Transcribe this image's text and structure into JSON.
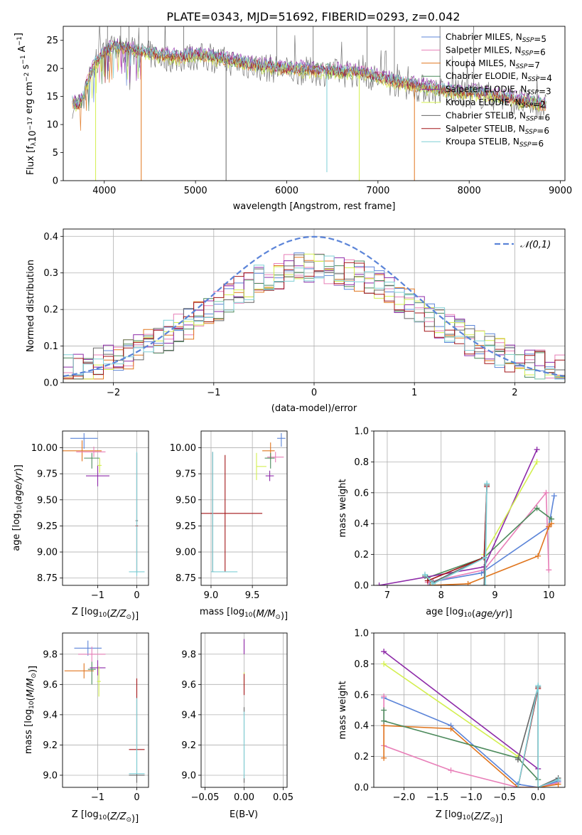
{
  "figure": {
    "title": "PLATE=0343, MJD=51692, FIBERID=0293, z=0.042"
  },
  "colors": {
    "Chabrier MILES": "#5b84d8",
    "Salpeter MILES": "#e87fb8",
    "Kroupa MILES": "#e0761f",
    "Chabrier ELODIE": "#4c8a5c",
    "Salpeter ELODIE": "#8d2aa8",
    "Kroupa ELODIE": "#d3ef4f",
    "Chabrier STELIB": "#666666",
    "Salpeter STELIB": "#a31518",
    "Kroupa STELIB": "#7ecfd6",
    "normal": "#5b84d8",
    "grid": "#b0b0b0"
  },
  "chart_data": [
    {
      "id": "spectrum",
      "type": "line",
      "title": "PLATE=0343, MJD=51692, FIBERID=0293, z=0.042",
      "xlabel": "wavelength [Angstrom, rest frame]",
      "ylabel": "Flux [f_λ 10^-17 erg cm^-2 s^-1 A^-1]",
      "xlim": [
        3550,
        9050
      ],
      "ylim": [
        0,
        27.5
      ],
      "xticks": [
        4000,
        5000,
        6000,
        7000,
        8000,
        9000
      ],
      "yticks": [
        0,
        5,
        10,
        15,
        20,
        25
      ],
      "x_range": [
        3650,
        8850
      ],
      "continuum": [
        [
          3650,
          14
        ],
        [
          3720,
          13.5
        ],
        [
          3760,
          14.5
        ],
        [
          3800,
          17
        ],
        [
          3900,
          21
        ],
        [
          3950,
          22
        ],
        [
          4000,
          23
        ],
        [
          4100,
          24
        ],
        [
          4200,
          23.8
        ],
        [
          4400,
          23
        ],
        [
          4600,
          22.5
        ],
        [
          4800,
          22
        ],
        [
          5000,
          22.5
        ],
        [
          5300,
          21.8
        ],
        [
          5600,
          20.8
        ],
        [
          6000,
          20
        ],
        [
          6300,
          19.8
        ],
        [
          6600,
          19.5
        ],
        [
          6800,
          19.5
        ],
        [
          7000,
          18.5
        ],
        [
          7400,
          17
        ],
        [
          7800,
          16
        ],
        [
          8200,
          15.5
        ],
        [
          8500,
          14.5
        ],
        [
          8850,
          13.5
        ]
      ],
      "legend": [
        {
          "label": "Chabrier MILES",
          "nssp": "5"
        },
        {
          "label": "Salpeter MILES",
          "nssp": "6"
        },
        {
          "label": "Kroupa MILES",
          "nssp": "7"
        },
        {
          "label": "Chabrier ELODIE",
          "nssp": "4"
        },
        {
          "label": "Salpeter ELODIE",
          "nssp": "3"
        },
        {
          "label": "Kroupa ELODIE",
          "nssp": "2"
        },
        {
          "label": "Chabrier STELIB",
          "nssp": "6"
        },
        {
          "label": "Salpeter STELIB",
          "nssp": "6"
        },
        {
          "label": "Kroupa STELIB",
          "nssp": "6"
        }
      ],
      "dips": [
        {
          "x": 3905,
          "y": 0,
          "series": "Kroupa ELODIE"
        },
        {
          "x": 4405,
          "y": 0,
          "series": "Kroupa MILES"
        },
        {
          "x": 5335,
          "y": 0,
          "series": "Chabrier STELIB"
        },
        {
          "x": 6440,
          "y": 1.5,
          "series": "Kroupa STELIB"
        },
        {
          "x": 6795,
          "y": 0,
          "series": "Kroupa ELODIE"
        },
        {
          "x": 7400,
          "y": 0,
          "series": "Kroupa MILES"
        }
      ]
    },
    {
      "id": "residuals",
      "type": "histogram",
      "xlabel": "(data-model)/error",
      "ylabel": "Normed distribution",
      "xlim": [
        -2.5,
        2.5
      ],
      "ylim": [
        0,
        0.42
      ],
      "xticks": [
        -2,
        -1,
        0,
        1,
        2
      ],
      "yticks": [
        0.0,
        0.1,
        0.2,
        0.3,
        0.4
      ],
      "bin_width": 0.1,
      "reference_label": "𝒩(0,1)",
      "reference_series": "normal"
    },
    {
      "id": "age-vs-Z",
      "type": "scatter",
      "xlabel": "Z [log10(Z/Z_sun)]",
      "ylabel": "age [log10(age/yr)]",
      "xlim": [
        -1.9,
        0.3
      ],
      "ylim": [
        8.68,
        10.16
      ],
      "xticks": [
        -1,
        0
      ],
      "yticks": [
        8.75,
        9.0,
        9.25,
        9.5,
        9.75,
        10.0
      ],
      "points": [
        {
          "series": "Chabrier MILES",
          "x": -1.35,
          "y": 10.09,
          "xerr": [
            0.35,
            0.35
          ],
          "yerr": [
            0.1,
            0.05
          ]
        },
        {
          "series": "Kroupa MILES",
          "x": -1.4,
          "y": 9.97,
          "xerr": [
            0.5,
            0.5
          ],
          "yerr": [
            0.1,
            0.1
          ]
        },
        {
          "series": "Salpeter MILES",
          "x": -1.1,
          "y": 9.96,
          "xerr": [
            0.45,
            0.3
          ],
          "yerr": [
            0.05,
            0.05
          ]
        },
        {
          "series": "Chabrier ELODIE",
          "x": -1.15,
          "y": 9.9,
          "xerr": [
            0.2,
            0.2
          ],
          "yerr": [
            0.1,
            0.05
          ]
        },
        {
          "series": "Salpeter ELODIE",
          "x": -1.0,
          "y": 9.73,
          "xerr": [
            0.3,
            0.3
          ],
          "yerr": [
            0.1,
            0.1
          ]
        },
        {
          "series": "Kroupa ELODIE",
          "x": -0.95,
          "y": 9.83,
          "xerr": [
            0.05,
            0.05
          ],
          "yerr": [
            0.07,
            0.07
          ]
        },
        {
          "series": "Salpeter STELIB",
          "x": 0.0,
          "y": 9.25,
          "xerr": [
            0.03,
            0.03
          ],
          "yerr": [
            0.45,
            0.7
          ]
        },
        {
          "series": "Chabrier STELIB",
          "x": 0.0,
          "y": 9.3,
          "xerr": [
            0.03,
            0.03
          ],
          "yerr": [
            0.5,
            0.65
          ]
        },
        {
          "series": "Kroupa STELIB",
          "x": 0.0,
          "y": 8.81,
          "xerr": [
            0.2,
            0.2
          ],
          "yerr": [
            0.04,
            1.15
          ]
        }
      ]
    },
    {
      "id": "age-vs-mass",
      "type": "scatter",
      "xlabel": "mass [log10(M/M_sun)]",
      "ylabel": "",
      "xlim": [
        8.88,
        9.92
      ],
      "ylim": [
        8.68,
        10.16
      ],
      "xticks": [
        9.0,
        9.5
      ],
      "yticks": [
        8.75,
        9.0,
        9.25,
        9.5,
        9.75,
        10.0
      ],
      "points": [
        {
          "series": "Chabrier MILES",
          "x": 9.85,
          "y": 10.09,
          "xerr": [
            0.05,
            0.05
          ],
          "yerr": [
            0.08,
            0.05
          ]
        },
        {
          "series": "Kroupa MILES",
          "x": 9.72,
          "y": 9.97,
          "xerr": [
            0.1,
            0.05
          ],
          "yerr": [
            0.08,
            0.08
          ]
        },
        {
          "series": "Salpeter MILES",
          "x": 9.78,
          "y": 9.91,
          "xerr": [
            0.1,
            0.1
          ],
          "yerr": [
            0.05,
            0.05
          ]
        },
        {
          "series": "Chabrier ELODIE",
          "x": 9.72,
          "y": 9.9,
          "xerr": [
            0.07,
            0.05
          ],
          "yerr": [
            0.1,
            0.05
          ]
        },
        {
          "series": "Salpeter ELODIE",
          "x": 9.71,
          "y": 9.73,
          "xerr": [
            0.05,
            0.05
          ],
          "yerr": [
            0.05,
            0.05
          ]
        },
        {
          "series": "Kroupa ELODIE",
          "x": 9.55,
          "y": 9.82,
          "xerr": [
            0.0,
            0.12
          ],
          "yerr": [
            0.13,
            0.13
          ]
        },
        {
          "series": "Salpeter STELIB",
          "x": 9.17,
          "y": 9.37,
          "xerr": [
            0.35,
            0.45
          ],
          "yerr": [
            0.56,
            0.56
          ]
        },
        {
          "series": "Chabrier STELIB",
          "x": 9.02,
          "y": 8.81,
          "xerr": [
            0.02,
            0.02
          ],
          "yerr": [
            0.0,
            1.15
          ]
        },
        {
          "series": "Kroupa STELIB",
          "x": 9.02,
          "y": 8.81,
          "xerr": [
            0.02,
            0.3
          ],
          "yerr": [
            0.0,
            1.15
          ]
        }
      ]
    },
    {
      "id": "weight-vs-age",
      "type": "line",
      "xlabel": "age [log10(age/yr)]",
      "ylabel": "mass weight",
      "xlim": [
        6.75,
        10.3
      ],
      "ylim": [
        0,
        1.0
      ],
      "xticks": [
        7,
        8,
        9,
        10
      ],
      "yticks": [
        0.0,
        0.2,
        0.4,
        0.6,
        0.8,
        1.0
      ],
      "series": [
        {
          "name": "Chabrier MILES",
          "x": [
            7.78,
            8.75,
            10.0,
            10.1
          ],
          "y": [
            0.02,
            0.08,
            0.38,
            0.58
          ]
        },
        {
          "name": "Salpeter MILES",
          "x": [
            7.75,
            8.8,
            9.95,
            10.0
          ],
          "y": [
            0.02,
            0.1,
            0.6,
            0.1
          ]
        },
        {
          "name": "Kroupa MILES",
          "x": [
            7.8,
            8.5,
            9.8,
            10.0,
            10.05
          ],
          "y": [
            0.0,
            0.01,
            0.19,
            0.38,
            0.4
          ]
        },
        {
          "name": "Chabrier ELODIE",
          "x": [
            7.75,
            8.8,
            9.78,
            10.05
          ],
          "y": [
            0.05,
            0.18,
            0.5,
            0.43
          ]
        },
        {
          "name": "Salpeter ELODIE",
          "x": [
            6.85,
            8.8,
            9.78
          ],
          "y": [
            0.0,
            0.12,
            0.88
          ]
        },
        {
          "name": "Kroupa ELODIE",
          "x": [
            8.8,
            9.78
          ],
          "y": [
            0.2,
            0.8
          ]
        },
        {
          "name": "Chabrier STELIB",
          "x": [
            7.7,
            7.85,
            8.8,
            8.85,
            8.8
          ],
          "y": [
            0.06,
            0.02,
            0.18,
            0.65,
            0.0
          ]
        },
        {
          "name": "Salpeter STELIB",
          "x": [
            7.75,
            8.8,
            8.85
          ],
          "y": [
            0.03,
            0.18,
            0.64
          ]
        },
        {
          "name": "Kroupa STELIB",
          "x": [
            7.7,
            7.85,
            8.82,
            8.85,
            8.82
          ],
          "y": [
            0.07,
            0.01,
            0.18,
            0.66,
            0.0
          ]
        }
      ]
    },
    {
      "id": "mass-vs-Z",
      "type": "scatter",
      "xlabel": "Z [log10(Z/Z_sun)]",
      "ylabel": "mass [log10(M/M_sun)]",
      "xlim": [
        -1.9,
        0.3
      ],
      "ylim": [
        8.92,
        9.94
      ],
      "xticks": [
        -1,
        0
      ],
      "yticks": [
        9.0,
        9.2,
        9.4,
        9.6,
        9.8
      ],
      "points": [
        {
          "series": "Chabrier MILES",
          "x": -1.25,
          "y": 9.84,
          "xerr": [
            0.35,
            0.35
          ],
          "yerr": [
            0.05,
            0.05
          ]
        },
        {
          "series": "Salpeter MILES",
          "x": -1.15,
          "y": 9.8,
          "xerr": [
            0.35,
            0.35
          ],
          "yerr": [
            0.05,
            0.05
          ]
        },
        {
          "series": "Kroupa MILES",
          "x": -1.35,
          "y": 9.69,
          "xerr": [
            0.5,
            0.25
          ],
          "yerr": [
            0.05,
            0.05
          ]
        },
        {
          "series": "Chabrier ELODIE",
          "x": -1.15,
          "y": 9.7,
          "xerr": [
            0.1,
            0.1
          ],
          "yerr": [
            0.1,
            0.05
          ]
        },
        {
          "series": "Salpeter ELODIE",
          "x": -1.0,
          "y": 9.71,
          "xerr": [
            0.2,
            0.2
          ],
          "yerr": [
            0.05,
            0.05
          ]
        },
        {
          "series": "Kroupa ELODIE",
          "x": -0.97,
          "y": 9.62,
          "xerr": [
            0.05,
            0.05
          ],
          "yerr": [
            0.1,
            0.1
          ]
        },
        {
          "series": "Salpeter STELIB",
          "x": 0.0,
          "y": 9.17,
          "xerr": [
            0.2,
            0.2
          ],
          "yerr": [
            0.0,
            0.47
          ]
        },
        {
          "series": "Chabrier STELIB",
          "x": 0.0,
          "y": 9.0,
          "xerr": [
            0.2,
            0.2
          ],
          "yerr": [
            0.05,
            0.5
          ]
        },
        {
          "series": "Kroupa STELIB",
          "x": 0.0,
          "y": 9.01,
          "xerr": [
            0.2,
            0.2
          ],
          "yerr": [
            0.0,
            0.5
          ]
        }
      ]
    },
    {
      "id": "mass-vs-ebv",
      "type": "scatter",
      "xlabel": "E(B-V)",
      "ylabel": "",
      "xlim": [
        -0.055,
        0.055
      ],
      "ylim": [
        8.92,
        9.94
      ],
      "xticks": [
        -0.05,
        0.0,
        0.05
      ],
      "yticks": [
        9.0,
        9.2,
        9.4,
        9.6,
        9.8
      ],
      "points": [
        {
          "series": "Salpeter MILES",
          "x": 0.0,
          "y": 9.85,
          "xerr": [
            0,
            0
          ],
          "yerr": [
            0.05,
            0.05
          ]
        },
        {
          "series": "Salpeter ELODIE",
          "x": 0.0,
          "y": 9.85,
          "xerr": [
            0,
            0
          ],
          "yerr": [
            0.05,
            0.05
          ]
        },
        {
          "series": "Kroupa ELODIE",
          "x": 0.0,
          "y": 9.63,
          "xerr": [
            0,
            0
          ],
          "yerr": [
            0.05,
            0.05
          ]
        },
        {
          "series": "Salpeter STELIB",
          "x": 0.0,
          "y": 9.6,
          "xerr": [
            0,
            0
          ],
          "yerr": [
            0.07,
            0.07
          ]
        },
        {
          "series": "Chabrier STELIB",
          "x": 0.0,
          "y": 9.2,
          "xerr": [
            0,
            0
          ],
          "yerr": [
            0.25,
            0.25
          ]
        },
        {
          "series": "Kroupa STELIB",
          "x": 0.0,
          "y": 9.2,
          "xerr": [
            0,
            0
          ],
          "yerr": [
            0.22,
            0.22
          ]
        }
      ]
    },
    {
      "id": "weight-vs-Z",
      "type": "line",
      "xlabel": "Z [log10(Z/Z_sun)]",
      "ylabel": "mass weight",
      "xlim": [
        -2.45,
        0.4
      ],
      "ylim": [
        0,
        1.0
      ],
      "xticks": [
        -2.0,
        -1.5,
        -1.0,
        -0.5,
        0.0,
        0.5
      ],
      "yticks": [
        0.0,
        0.2,
        0.4,
        0.6,
        0.8,
        1.0
      ],
      "series": [
        {
          "name": "Chabrier MILES",
          "x": [
            -2.3,
            -1.3,
            -0.3,
            0.0,
            0.3
          ],
          "y": [
            0.58,
            0.4,
            0.02,
            0.0,
            0.04
          ]
        },
        {
          "name": "Salpeter MILES",
          "x": [
            -2.3,
            -2.3,
            -1.3,
            -0.3,
            0.0,
            0.3
          ],
          "y": [
            0.59,
            0.27,
            0.11,
            0.0,
            0.0,
            0.03
          ]
        },
        {
          "name": "Kroupa MILES",
          "x": [
            -2.3,
            -2.3,
            -1.3,
            -0.3,
            0.0,
            0.3
          ],
          "y": [
            0.19,
            0.4,
            0.38,
            0.0,
            0.0,
            0.02
          ]
        },
        {
          "name": "Chabrier ELODIE",
          "x": [
            -2.3,
            -2.3,
            -0.3,
            0.0
          ],
          "y": [
            0.5,
            0.43,
            0.19,
            0.05
          ]
        },
        {
          "name": "Salpeter ELODIE",
          "x": [
            -2.3,
            0.0
          ],
          "y": [
            0.88,
            0.12
          ]
        },
        {
          "name": "Kroupa ELODIE",
          "x": [
            -2.3,
            -0.3
          ],
          "y": [
            0.8,
            0.2
          ]
        },
        {
          "name": "Chabrier STELIB",
          "x": [
            -0.3,
            0.0,
            0.0,
            0.3
          ],
          "y": [
            0.18,
            0.65,
            0.0,
            0.06
          ]
        },
        {
          "name": "Salpeter STELIB",
          "x": [
            -0.3,
            0.0,
            0.0
          ],
          "y": [
            0.0,
            0.64,
            0.0
          ]
        },
        {
          "name": "Kroupa STELIB",
          "x": [
            -0.3,
            0.0,
            0.0,
            0.3
          ],
          "y": [
            0.0,
            0.66,
            0.0,
            0.05
          ]
        }
      ]
    }
  ]
}
